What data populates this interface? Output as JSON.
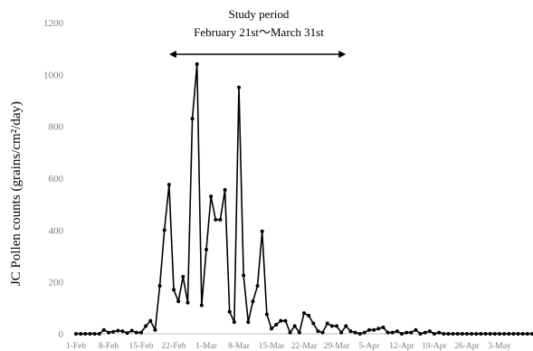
{
  "chart_data": {
    "type": "line",
    "title": "",
    "xlabel": "",
    "ylabel": "JC Pollen counts (grains/cm²/day)",
    "ylim": [
      0,
      1200
    ],
    "yticks": [
      0,
      200,
      400,
      600,
      800,
      1000,
      1200
    ],
    "grid": false,
    "x_start": "1-Feb",
    "x_tick_labels": [
      "1-Feb",
      "8-Feb",
      "15-Feb",
      "22-Feb",
      "1-Mar",
      "8-Mar",
      "15-Mar",
      "22-Mar",
      "29-Mar",
      "5-Apr",
      "12-Apr",
      "19-Apr",
      "26-Apr",
      "3-May"
    ],
    "annotation": {
      "line1": "Study period",
      "line2": "February 21st〜March 31st",
      "from": "21-Feb",
      "to": "31-Mar"
    },
    "series": [
      {
        "name": "",
        "values": [
          0,
          0,
          0,
          0,
          0,
          0,
          15,
          5,
          8,
          12,
          10,
          3,
          12,
          5,
          5,
          30,
          50,
          15,
          185,
          400,
          575,
          170,
          125,
          220,
          120,
          830,
          1040,
          110,
          325,
          530,
          440,
          440,
          555,
          85,
          45,
          950,
          225,
          45,
          125,
          185,
          395,
          75,
          20,
          35,
          50,
          50,
          5,
          30,
          5,
          80,
          70,
          40,
          10,
          5,
          40,
          30,
          30,
          5,
          30,
          10,
          5,
          0,
          5,
          15,
          15,
          20,
          25,
          5,
          5,
          10,
          0,
          5,
          5,
          15,
          0,
          5,
          10,
          0,
          5,
          0,
          0,
          0,
          0,
          0,
          0,
          0,
          0,
          0,
          0,
          0,
          0,
          0,
          0,
          0,
          0,
          0,
          0,
          0,
          0
        ]
      }
    ]
  }
}
